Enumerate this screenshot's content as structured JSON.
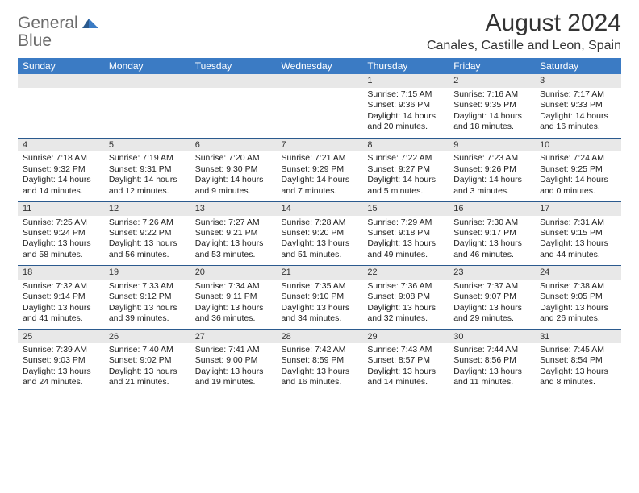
{
  "logo": {
    "word1": "General",
    "word2": "Blue"
  },
  "title": "August 2024",
  "location": "Canales, Castille and Leon, Spain",
  "colors": {
    "header_bg": "#3b7bc4",
    "header_text": "#ffffff",
    "daynum_bg": "#e8e8e8",
    "cell_border": "#2b5a8e",
    "body_text": "#222222",
    "logo_gray": "#6b6b6b",
    "logo_blue": "#3b7bc4"
  },
  "day_headers": [
    "Sunday",
    "Monday",
    "Tuesday",
    "Wednesday",
    "Thursday",
    "Friday",
    "Saturday"
  ],
  "weeks": [
    {
      "nums": [
        "",
        "",
        "",
        "",
        "1",
        "2",
        "3"
      ],
      "cells": [
        null,
        null,
        null,
        null,
        {
          "sunrise": "Sunrise: 7:15 AM",
          "sunset": "Sunset: 9:36 PM",
          "daylight": "Daylight: 14 hours and 20 minutes."
        },
        {
          "sunrise": "Sunrise: 7:16 AM",
          "sunset": "Sunset: 9:35 PM",
          "daylight": "Daylight: 14 hours and 18 minutes."
        },
        {
          "sunrise": "Sunrise: 7:17 AM",
          "sunset": "Sunset: 9:33 PM",
          "daylight": "Daylight: 14 hours and 16 minutes."
        }
      ]
    },
    {
      "nums": [
        "4",
        "5",
        "6",
        "7",
        "8",
        "9",
        "10"
      ],
      "cells": [
        {
          "sunrise": "Sunrise: 7:18 AM",
          "sunset": "Sunset: 9:32 PM",
          "daylight": "Daylight: 14 hours and 14 minutes."
        },
        {
          "sunrise": "Sunrise: 7:19 AM",
          "sunset": "Sunset: 9:31 PM",
          "daylight": "Daylight: 14 hours and 12 minutes."
        },
        {
          "sunrise": "Sunrise: 7:20 AM",
          "sunset": "Sunset: 9:30 PM",
          "daylight": "Daylight: 14 hours and 9 minutes."
        },
        {
          "sunrise": "Sunrise: 7:21 AM",
          "sunset": "Sunset: 9:29 PM",
          "daylight": "Daylight: 14 hours and 7 minutes."
        },
        {
          "sunrise": "Sunrise: 7:22 AM",
          "sunset": "Sunset: 9:27 PM",
          "daylight": "Daylight: 14 hours and 5 minutes."
        },
        {
          "sunrise": "Sunrise: 7:23 AM",
          "sunset": "Sunset: 9:26 PM",
          "daylight": "Daylight: 14 hours and 3 minutes."
        },
        {
          "sunrise": "Sunrise: 7:24 AM",
          "sunset": "Sunset: 9:25 PM",
          "daylight": "Daylight: 14 hours and 0 minutes."
        }
      ]
    },
    {
      "nums": [
        "11",
        "12",
        "13",
        "14",
        "15",
        "16",
        "17"
      ],
      "cells": [
        {
          "sunrise": "Sunrise: 7:25 AM",
          "sunset": "Sunset: 9:24 PM",
          "daylight": "Daylight: 13 hours and 58 minutes."
        },
        {
          "sunrise": "Sunrise: 7:26 AM",
          "sunset": "Sunset: 9:22 PM",
          "daylight": "Daylight: 13 hours and 56 minutes."
        },
        {
          "sunrise": "Sunrise: 7:27 AM",
          "sunset": "Sunset: 9:21 PM",
          "daylight": "Daylight: 13 hours and 53 minutes."
        },
        {
          "sunrise": "Sunrise: 7:28 AM",
          "sunset": "Sunset: 9:20 PM",
          "daylight": "Daylight: 13 hours and 51 minutes."
        },
        {
          "sunrise": "Sunrise: 7:29 AM",
          "sunset": "Sunset: 9:18 PM",
          "daylight": "Daylight: 13 hours and 49 minutes."
        },
        {
          "sunrise": "Sunrise: 7:30 AM",
          "sunset": "Sunset: 9:17 PM",
          "daylight": "Daylight: 13 hours and 46 minutes."
        },
        {
          "sunrise": "Sunrise: 7:31 AM",
          "sunset": "Sunset: 9:15 PM",
          "daylight": "Daylight: 13 hours and 44 minutes."
        }
      ]
    },
    {
      "nums": [
        "18",
        "19",
        "20",
        "21",
        "22",
        "23",
        "24"
      ],
      "cells": [
        {
          "sunrise": "Sunrise: 7:32 AM",
          "sunset": "Sunset: 9:14 PM",
          "daylight": "Daylight: 13 hours and 41 minutes."
        },
        {
          "sunrise": "Sunrise: 7:33 AM",
          "sunset": "Sunset: 9:12 PM",
          "daylight": "Daylight: 13 hours and 39 minutes."
        },
        {
          "sunrise": "Sunrise: 7:34 AM",
          "sunset": "Sunset: 9:11 PM",
          "daylight": "Daylight: 13 hours and 36 minutes."
        },
        {
          "sunrise": "Sunrise: 7:35 AM",
          "sunset": "Sunset: 9:10 PM",
          "daylight": "Daylight: 13 hours and 34 minutes."
        },
        {
          "sunrise": "Sunrise: 7:36 AM",
          "sunset": "Sunset: 9:08 PM",
          "daylight": "Daylight: 13 hours and 32 minutes."
        },
        {
          "sunrise": "Sunrise: 7:37 AM",
          "sunset": "Sunset: 9:07 PM",
          "daylight": "Daylight: 13 hours and 29 minutes."
        },
        {
          "sunrise": "Sunrise: 7:38 AM",
          "sunset": "Sunset: 9:05 PM",
          "daylight": "Daylight: 13 hours and 26 minutes."
        }
      ]
    },
    {
      "nums": [
        "25",
        "26",
        "27",
        "28",
        "29",
        "30",
        "31"
      ],
      "cells": [
        {
          "sunrise": "Sunrise: 7:39 AM",
          "sunset": "Sunset: 9:03 PM",
          "daylight": "Daylight: 13 hours and 24 minutes."
        },
        {
          "sunrise": "Sunrise: 7:40 AM",
          "sunset": "Sunset: 9:02 PM",
          "daylight": "Daylight: 13 hours and 21 minutes."
        },
        {
          "sunrise": "Sunrise: 7:41 AM",
          "sunset": "Sunset: 9:00 PM",
          "daylight": "Daylight: 13 hours and 19 minutes."
        },
        {
          "sunrise": "Sunrise: 7:42 AM",
          "sunset": "Sunset: 8:59 PM",
          "daylight": "Daylight: 13 hours and 16 minutes."
        },
        {
          "sunrise": "Sunrise: 7:43 AM",
          "sunset": "Sunset: 8:57 PM",
          "daylight": "Daylight: 13 hours and 14 minutes."
        },
        {
          "sunrise": "Sunrise: 7:44 AM",
          "sunset": "Sunset: 8:56 PM",
          "daylight": "Daylight: 13 hours and 11 minutes."
        },
        {
          "sunrise": "Sunrise: 7:45 AM",
          "sunset": "Sunset: 8:54 PM",
          "daylight": "Daylight: 13 hours and 8 minutes."
        }
      ]
    }
  ]
}
